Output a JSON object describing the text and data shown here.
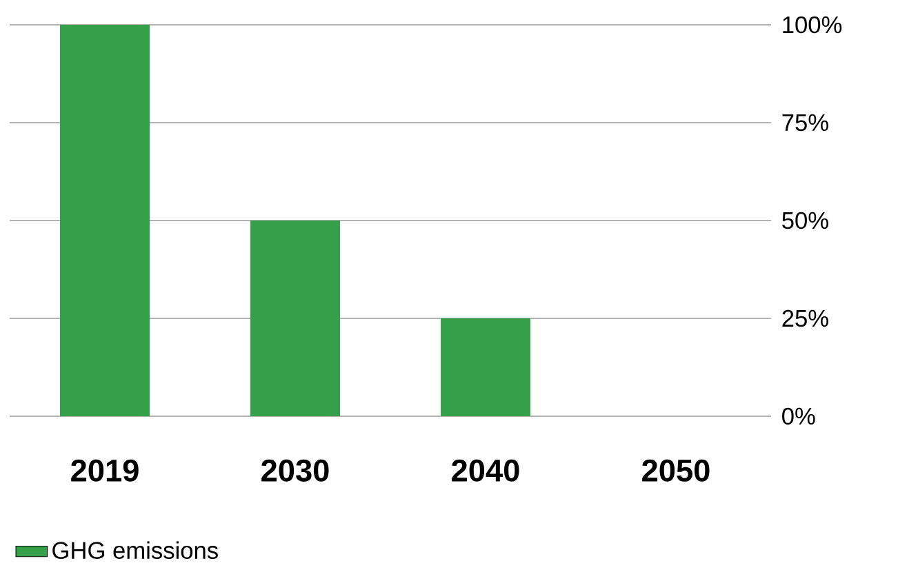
{
  "chart_data": {
    "type": "bar",
    "categories": [
      "2019",
      "2030",
      "2040",
      "2050"
    ],
    "series": [
      {
        "name": "GHG emissions",
        "color": "#34a04a",
        "values": [
          100,
          50,
          25,
          0
        ]
      }
    ],
    "ylim": [
      0,
      100
    ],
    "yticks": [
      {
        "value": 0,
        "label": "0%"
      },
      {
        "value": 25,
        "label": "25%"
      },
      {
        "value": 50,
        "label": "50%"
      },
      {
        "value": 75,
        "label": "75%"
      },
      {
        "value": 100,
        "label": "100%"
      }
    ],
    "grid": "y",
    "legend": "bottom left"
  }
}
